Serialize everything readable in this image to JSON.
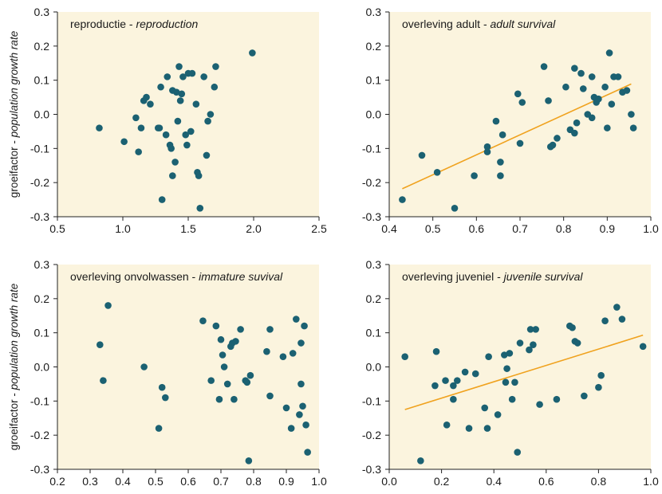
{
  "y_axis_label": {
    "nl": "groeifactor",
    "sep": " - ",
    "en": "population growth rate"
  },
  "style": {
    "panel_bg": "#fbf4de",
    "point_color": "#1b6172",
    "fit_color": "#f0a21e",
    "axis_color": "#222222"
  },
  "chart_data": [
    {
      "type": "scatter",
      "title": {
        "nl": "reproductie",
        "sep": " - ",
        "en": "reproduction"
      },
      "xlim": [
        0.5,
        2.5
      ],
      "ylim": [
        -0.3,
        0.3
      ],
      "xticks": [
        "0.5",
        "1.0",
        "1.5",
        "2.0",
        "2.5"
      ],
      "yticks": [
        "-0.3",
        "-0.2",
        "-0.1",
        "0.0",
        "0.1",
        "0.2",
        "0.3"
      ],
      "x": [
        0.82,
        1.01,
        1.1,
        1.12,
        1.14,
        1.16,
        1.18,
        1.21,
        1.27,
        1.28,
        1.3,
        1.29,
        1.33,
        1.34,
        1.36,
        1.37,
        1.38,
        1.38,
        1.4,
        1.41,
        1.42,
        1.43,
        1.44,
        1.45,
        1.46,
        1.48,
        1.49,
        1.5,
        1.52,
        1.53,
        1.56,
        1.57,
        1.58,
        1.59,
        1.62,
        1.64,
        1.65,
        1.67,
        1.7,
        1.71,
        1.99
      ],
      "y": [
        -0.04,
        -0.08,
        -0.01,
        -0.11,
        -0.04,
        0.04,
        0.05,
        0.03,
        -0.04,
        -0.04,
        -0.25,
        0.08,
        -0.06,
        0.11,
        -0.09,
        -0.1,
        -0.18,
        0.07,
        -0.14,
        0.065,
        -0.02,
        0.14,
        0.04,
        0.06,
        0.11,
        -0.06,
        -0.09,
        0.12,
        -0.05,
        0.12,
        0.03,
        -0.17,
        -0.18,
        -0.275,
        0.11,
        -0.12,
        -0.02,
        0.0,
        0.08,
        0.14,
        0.18
      ],
      "fit": null
    },
    {
      "type": "scatter",
      "title": {
        "nl": "overleving adult",
        "sep": " - ",
        "en": "adult survival"
      },
      "xlim": [
        0.4,
        1.0
      ],
      "ylim": [
        -0.3,
        0.3
      ],
      "xticks": [
        "0.4",
        "0.5",
        "0.6",
        "0.7",
        "0.8",
        "0.9",
        "1.0"
      ],
      "yticks": [
        "-0.3",
        "-0.2",
        "-0.1",
        "0.0",
        "0.1",
        "0.2",
        "0.3"
      ],
      "x": [
        0.43,
        0.475,
        0.51,
        0.55,
        0.595,
        0.625,
        0.625,
        0.645,
        0.655,
        0.655,
        0.66,
        0.695,
        0.7,
        0.705,
        0.755,
        0.765,
        0.77,
        0.775,
        0.785,
        0.805,
        0.815,
        0.825,
        0.825,
        0.83,
        0.84,
        0.845,
        0.855,
        0.865,
        0.865,
        0.87,
        0.875,
        0.88,
        0.895,
        0.9,
        0.905,
        0.91,
        0.915,
        0.925,
        0.935,
        0.945,
        0.955,
        0.96
      ],
      "y": [
        -0.25,
        -0.12,
        -0.17,
        -0.275,
        -0.18,
        -0.11,
        -0.095,
        -0.02,
        -0.14,
        -0.18,
        -0.06,
        0.06,
        -0.085,
        0.035,
        0.14,
        0.04,
        -0.095,
        -0.09,
        -0.07,
        0.08,
        -0.045,
        0.135,
        -0.055,
        -0.025,
        0.12,
        0.075,
        0.0,
        0.11,
        -0.01,
        0.05,
        0.035,
        0.045,
        0.08,
        -0.04,
        0.18,
        0.03,
        0.11,
        0.11,
        0.065,
        0.07,
        0.0,
        -0.04
      ],
      "fit": {
        "x": [
          0.43,
          0.955
        ],
        "y": [
          -0.218,
          0.089
        ]
      }
    },
    {
      "type": "scatter",
      "title": {
        "nl": "overleving onvolwassen",
        "sep": " - ",
        "en": "immature suvival"
      },
      "xlim": [
        0.2,
        1.0
      ],
      "ylim": [
        -0.3,
        0.3
      ],
      "xticks": [
        "0.2",
        "0.3",
        "0.4",
        "0.5",
        "0.6",
        "0.7",
        "0.8",
        "0.9",
        "1.0"
      ],
      "yticks": [
        "-0.3",
        "-0.2",
        "-0.1",
        "0.0",
        "0.1",
        "0.2",
        "0.3"
      ],
      "x": [
        0.33,
        0.34,
        0.355,
        0.465,
        0.51,
        0.52,
        0.53,
        0.645,
        0.67,
        0.685,
        0.695,
        0.7,
        0.705,
        0.71,
        0.72,
        0.73,
        0.735,
        0.74,
        0.745,
        0.76,
        0.775,
        0.78,
        0.785,
        0.79,
        0.84,
        0.85,
        0.85,
        0.89,
        0.9,
        0.915,
        0.92,
        0.93,
        0.94,
        0.945,
        0.945,
        0.95,
        0.955,
        0.96,
        0.965
      ],
      "y": [
        0.065,
        -0.04,
        0.18,
        0.0,
        -0.18,
        -0.06,
        -0.09,
        0.135,
        -0.04,
        0.12,
        -0.095,
        0.08,
        0.035,
        0.0,
        -0.05,
        0.06,
        0.07,
        -0.095,
        0.075,
        0.11,
        -0.04,
        -0.045,
        -0.275,
        -0.025,
        0.045,
        0.11,
        -0.085,
        0.03,
        -0.12,
        -0.18,
        0.04,
        0.14,
        -0.14,
        -0.05,
        0.07,
        -0.115,
        0.12,
        -0.17,
        -0.25
      ],
      "fit": null
    },
    {
      "type": "scatter",
      "title": {
        "nl": "overleving juveniel",
        "sep": " - ",
        "en": "juvenile survival"
      },
      "xlim": [
        0.0,
        1.0
      ],
      "ylim": [
        -0.3,
        0.3
      ],
      "xticks": [
        "0.0",
        "0.2",
        "0.4",
        "0.6",
        "0.8",
        "1.0"
      ],
      "yticks": [
        "-0.3",
        "-0.2",
        "-0.1",
        "0.0",
        "0.1",
        "0.2",
        "0.3"
      ],
      "x": [
        0.06,
        0.12,
        0.175,
        0.18,
        0.215,
        0.22,
        0.245,
        0.245,
        0.26,
        0.29,
        0.305,
        0.33,
        0.365,
        0.375,
        0.38,
        0.415,
        0.44,
        0.445,
        0.45,
        0.46,
        0.47,
        0.48,
        0.49,
        0.5,
        0.535,
        0.54,
        0.55,
        0.56,
        0.575,
        0.64,
        0.69,
        0.7,
        0.71,
        0.72,
        0.745,
        0.8,
        0.81,
        0.825,
        0.87,
        0.89,
        0.97
      ],
      "y": [
        0.03,
        -0.275,
        -0.055,
        0.045,
        -0.04,
        -0.17,
        -0.095,
        -0.055,
        -0.04,
        -0.015,
        -0.18,
        -0.02,
        -0.12,
        -0.18,
        0.03,
        -0.14,
        0.035,
        -0.045,
        -0.005,
        0.04,
        -0.095,
        -0.045,
        -0.25,
        0.07,
        0.05,
        0.11,
        0.065,
        0.11,
        -0.11,
        -0.095,
        0.12,
        0.115,
        0.075,
        0.07,
        -0.085,
        -0.06,
        -0.025,
        0.135,
        0.175,
        0.14,
        0.06
      ],
      "fit": {
        "x": [
          0.06,
          0.97
        ],
        "y": [
          -0.125,
          0.093
        ]
      }
    }
  ]
}
